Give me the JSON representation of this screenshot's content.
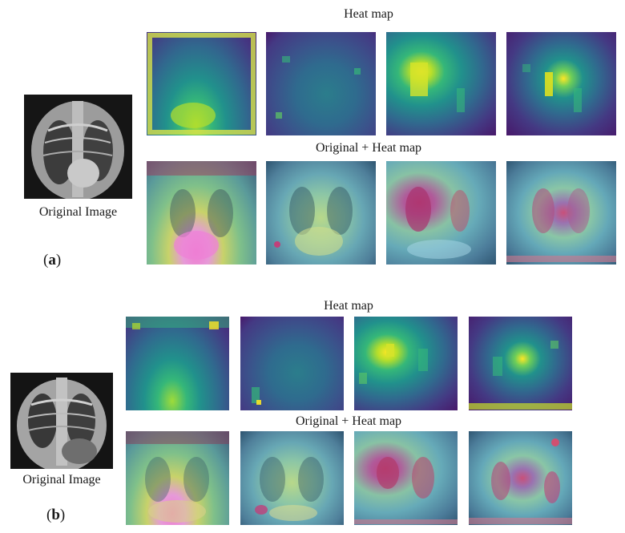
{
  "panel_a": {
    "label_open": "(",
    "label_letter": "a",
    "label_close": ")",
    "original_caption": "Original Image",
    "heatmap_caption": "Heat map",
    "overlay_caption": "Original + Heat map"
  },
  "panel_b": {
    "label_open": "(",
    "label_letter": "b",
    "label_close": ")",
    "original_caption": "Original Image",
    "heatmap_caption": "Heat map",
    "overlay_caption": "Original + Heat map"
  },
  "colors": {
    "viridis_dark": "#440154",
    "viridis_mid": "#21918c",
    "viridis_light": "#fde725",
    "overlay_hot": "#c0407a"
  }
}
